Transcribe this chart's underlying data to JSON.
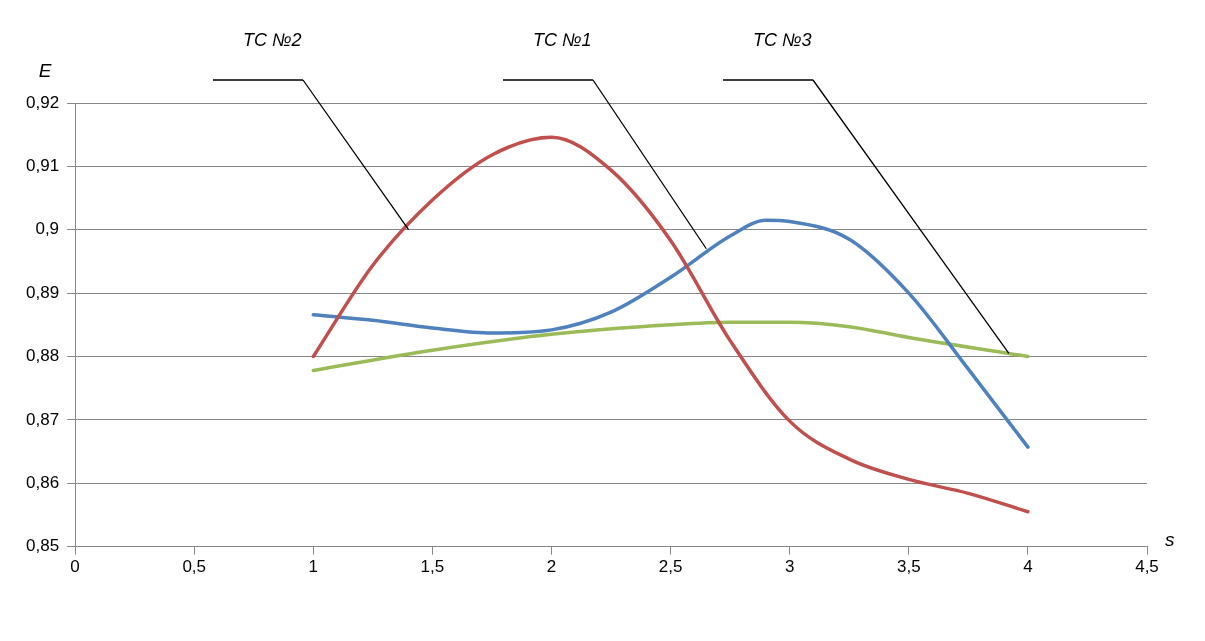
{
  "chart_data": {
    "type": "line",
    "xlabel": "s",
    "ylabel": "E",
    "xlim": [
      0,
      4.5
    ],
    "xticks": [
      0,
      {
        "value": 0.5,
        "label": "0,5"
      },
      1,
      {
        "value": 1.5,
        "label": "1,5"
      },
      2,
      {
        "value": 2.5,
        "label": "2,5"
      },
      3,
      {
        "value": 3.5,
        "label": "3,5"
      },
      4,
      {
        "value": 4.5,
        "label": "4,5"
      }
    ],
    "ylim": [
      0.85,
      0.92
    ],
    "yticks": [
      {
        "value": 0.85,
        "label": "0,85"
      },
      {
        "value": 0.86,
        "label": "0,86"
      },
      {
        "value": 0.87,
        "label": "0,87"
      },
      {
        "value": 0.88,
        "label": "0,88"
      },
      {
        "value": 0.89,
        "label": "0,89"
      },
      {
        "value": 0.9,
        "label": "0,9"
      },
      {
        "value": 0.91,
        "label": "0,91"
      },
      {
        "value": 0.92,
        "label": "0,92"
      }
    ],
    "grid": "y",
    "annotations": [
      "ТС №2",
      "ТС №1",
      "ТС №3"
    ],
    "legend": false,
    "marker": "none",
    "line_style": "solid",
    "series": [
      {
        "color": "#c0504d",
        "x": [
          1,
          1.25,
          1.5,
          1.75,
          2,
          2.25,
          2.5,
          2.75,
          3,
          3.25,
          3.5,
          3.75,
          4
        ],
        "values": [
          0.88,
          0.8944,
          0.9047,
          0.9118,
          0.9146,
          0.9094,
          0.8983,
          0.8825,
          0.8698,
          0.8638,
          0.8606,
          0.8584,
          0.8555
        ]
      },
      {
        "color": "#4f81bd",
        "x": [
          1,
          1.25,
          1.5,
          1.75,
          2,
          2.25,
          2.5,
          2.75,
          2.9,
          3,
          3.25,
          3.5,
          3.75,
          4
        ],
        "values": [
          0.8866,
          0.8857,
          0.8845,
          0.8837,
          0.8842,
          0.887,
          0.8925,
          0.899,
          0.9015,
          0.9013,
          0.8985,
          0.89,
          0.878,
          0.8657
        ]
      },
      {
        "color": "#9bbb59",
        "x": [
          1,
          1.5,
          2,
          2.5,
          2.75,
          3,
          3.25,
          3.5,
          4
        ],
        "values": [
          0.8778,
          0.881,
          0.8835,
          0.885,
          0.8854,
          0.8854,
          0.8847,
          0.883,
          0.88
        ]
      }
    ]
  }
}
